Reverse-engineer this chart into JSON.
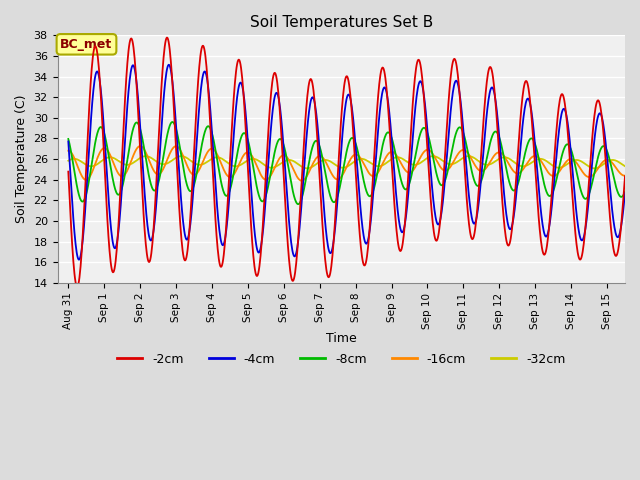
{
  "title": "Soil Temperatures Set B",
  "xlabel": "Time",
  "ylabel": "Soil Temperature (C)",
  "ylim": [
    14,
    38
  ],
  "xlim_days": [
    -0.3,
    15.5
  ],
  "annotation": "BC_met",
  "legend_labels": [
    "-2cm",
    "-4cm",
    "-8cm",
    "-16cm",
    "-32cm"
  ],
  "legend_colors": [
    "#dd0000",
    "#0000dd",
    "#00bb00",
    "#ff8800",
    "#cccc00"
  ],
  "bg_color": "#dcdcdc",
  "axes_bg": "#f0f0f0",
  "xtick_labels": [
    "Aug 31",
    "Sep 1",
    "Sep 2",
    "Sep 3",
    "Sep 4",
    "Sep 5",
    "Sep 6",
    "Sep 7",
    "Sep 8",
    "Sep 9",
    "Sep 10",
    "Sep 11",
    "Sep 12",
    "Sep 13",
    "Sep 14",
    "Sep 15"
  ],
  "xtick_positions": [
    0,
    1,
    2,
    3,
    4,
    5,
    6,
    7,
    8,
    9,
    10,
    11,
    12,
    13,
    14,
    15
  ],
  "mean_temp": 25.5,
  "amp_2cm_start": 11.5,
  "amp_2cm_end": 7.5,
  "amp_4cm_start": 9.0,
  "amp_4cm_end": 6.0,
  "amp_8cm_start": 3.5,
  "amp_8cm_end": 2.5,
  "amp_16cm_start": 1.5,
  "amp_16cm_end": 0.8,
  "amp_32cm": 0.4,
  "phase_2cm": 0.25,
  "phase_4cm": 0.3,
  "phase_8cm": 0.4,
  "phase_16cm": 0.5,
  "phase_32cm": 0.65
}
